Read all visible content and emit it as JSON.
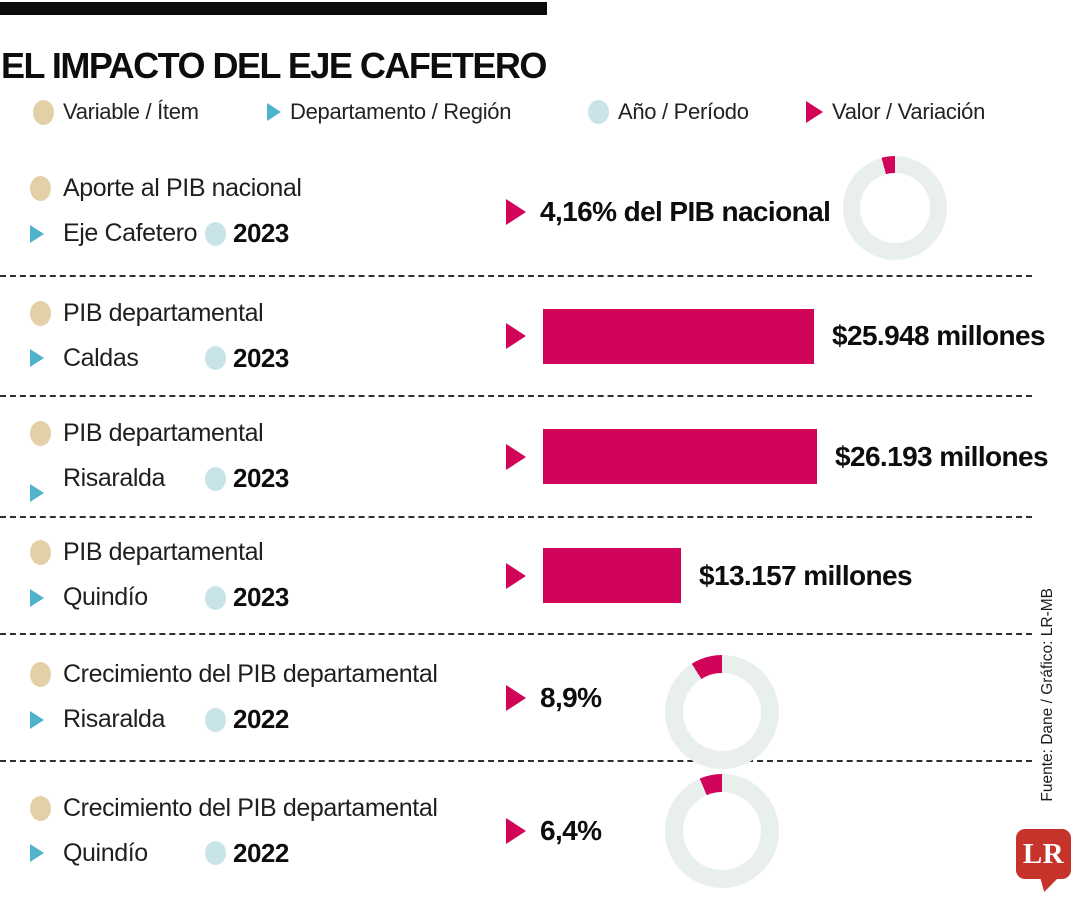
{
  "header": {
    "title": "EL IMPACTO DEL EJE CAFETERO"
  },
  "legend": [
    {
      "icon": "variable-dot-icon",
      "label": "Variable / Ítem"
    },
    {
      "icon": "region-triangle-icon",
      "label": "Departamento / Región"
    },
    {
      "icon": "year-dot-icon",
      "label": "Año / Período"
    },
    {
      "icon": "value-triangle-icon",
      "label": "Valor / Variación"
    }
  ],
  "colors": {
    "magenta": "#d00559",
    "ring_background": "#e9efec",
    "beige": "#e4d0a7",
    "teal": "#4fb4c9",
    "light_blue": "#c9e4e9",
    "logo_red": "#c5332b",
    "black_bar": "#0b0b0b"
  },
  "rows": [
    {
      "variable": "Aporte al PIB nacional",
      "region": "Eje Cafetero",
      "year": "2023",
      "viz": "donut",
      "percent": 4.16,
      "value_label": "4,16% del PIB nacional"
    },
    {
      "variable": "PIB departamental",
      "region": "Caldas",
      "year": "2023",
      "viz": "bar",
      "value": 25948,
      "value_label": "$25.948 millones"
    },
    {
      "variable": "PIB departamental",
      "region": "Risaralda",
      "year": "2023",
      "viz": "bar",
      "value": 26193,
      "value_label": "$26.193 millones"
    },
    {
      "variable": "PIB departamental",
      "region": "Quindío",
      "year": "2023",
      "viz": "bar",
      "value": 13157,
      "value_label": "$13.157 millones"
    },
    {
      "variable": "Crecimiento del PIB departamental",
      "region": "Risaralda",
      "year": "2022",
      "viz": "donut",
      "percent": 8.9,
      "value_label": "8,9%"
    },
    {
      "variable": "Crecimiento del PIB departamental",
      "region": "Quindío",
      "year": "2022",
      "viz": "donut",
      "percent": 6.4,
      "value_label": "6,4%"
    }
  ],
  "footer": {
    "source": "Fuente: Dane / Gráfico: LR-MB",
    "logo": "LR"
  },
  "chart_data": [
    {
      "type": "pie",
      "title": "Aporte al PIB nacional — Eje Cafetero (2023)",
      "labels": [
        "Eje Cafetero",
        "Resto del PIB nacional"
      ],
      "values": [
        4.16,
        95.84
      ],
      "unit": "% del PIB nacional",
      "annotation": "4,16% del PIB nacional"
    },
    {
      "type": "bar",
      "title": "PIB departamental 2023",
      "categories": [
        "Caldas",
        "Risaralda",
        "Quindío"
      ],
      "values": [
        25948,
        26193,
        13157
      ],
      "xlabel": "",
      "ylabel": "$ millones",
      "ylim": [
        0,
        26193
      ],
      "data_labels": [
        "$25.948 millones",
        "$26.193 millones",
        "$13.157 millones"
      ],
      "orientation": "horizontal",
      "grid": false,
      "legend": false
    },
    {
      "type": "pie",
      "title": "Crecimiento del PIB departamental — Risaralda (2022)",
      "labels": [
        "Crecimiento",
        "Resto"
      ],
      "values": [
        8.9,
        91.1
      ],
      "annotation": "8,9%"
    },
    {
      "type": "pie",
      "title": "Crecimiento del PIB departamental — Quindío (2022)",
      "labels": [
        "Crecimiento",
        "Resto"
      ],
      "values": [
        6.4,
        93.6
      ],
      "annotation": "6,4%"
    }
  ]
}
